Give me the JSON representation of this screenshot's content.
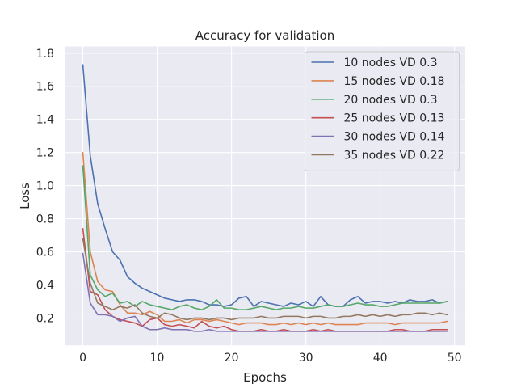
{
  "chart_data": {
    "type": "line",
    "title": "Accuracy for validation",
    "xlabel": "Epochs",
    "ylabel": "Loss",
    "xlim": [
      -2.45,
      51.45
    ],
    "ylim": [
      0.035,
      1.84
    ],
    "xticks": [
      0,
      10,
      20,
      30,
      40,
      50
    ],
    "yticks": [
      0.2,
      0.4,
      0.6,
      0.8,
      1.0,
      1.2,
      1.4,
      1.6,
      1.8
    ],
    "grid": true,
    "legend_position": "top-right",
    "x": [
      0,
      1,
      2,
      3,
      4,
      5,
      6,
      7,
      8,
      9,
      10,
      11,
      12,
      13,
      14,
      15,
      16,
      17,
      18,
      19,
      20,
      21,
      22,
      23,
      24,
      25,
      26,
      27,
      28,
      29,
      30,
      31,
      32,
      33,
      34,
      35,
      36,
      37,
      38,
      39,
      40,
      41,
      42,
      43,
      44,
      45,
      46,
      47,
      48,
      49
    ],
    "series": [
      {
        "name": "10 nodes VD 0.3",
        "color": "#4c72b0",
        "values": [
          1.73,
          1.18,
          0.89,
          0.74,
          0.6,
          0.55,
          0.45,
          0.41,
          0.38,
          0.36,
          0.34,
          0.32,
          0.31,
          0.3,
          0.31,
          0.31,
          0.3,
          0.28,
          0.28,
          0.27,
          0.28,
          0.32,
          0.33,
          0.27,
          0.3,
          0.29,
          0.28,
          0.27,
          0.29,
          0.28,
          0.3,
          0.27,
          0.33,
          0.28,
          0.27,
          0.27,
          0.31,
          0.33,
          0.29,
          0.3,
          0.3,
          0.29,
          0.3,
          0.29,
          0.31,
          0.3,
          0.3,
          0.31,
          0.29,
          0.3
        ]
      },
      {
        "name": "15 nodes VD 0.18",
        "color": "#dd8452",
        "values": [
          1.2,
          0.6,
          0.42,
          0.37,
          0.36,
          0.28,
          0.23,
          0.23,
          0.22,
          0.24,
          0.22,
          0.18,
          0.18,
          0.19,
          0.17,
          0.19,
          0.19,
          0.18,
          0.19,
          0.18,
          0.17,
          0.16,
          0.17,
          0.17,
          0.17,
          0.16,
          0.16,
          0.17,
          0.16,
          0.17,
          0.16,
          0.17,
          0.16,
          0.17,
          0.16,
          0.16,
          0.16,
          0.16,
          0.17,
          0.17,
          0.17,
          0.17,
          0.16,
          0.17,
          0.17,
          0.17,
          0.17,
          0.17,
          0.17,
          0.18
        ]
      },
      {
        "name": "20 nodes VD 0.3",
        "color": "#55a868",
        "values": [
          1.12,
          0.46,
          0.37,
          0.33,
          0.35,
          0.29,
          0.3,
          0.27,
          0.3,
          0.28,
          0.27,
          0.26,
          0.25,
          0.27,
          0.28,
          0.26,
          0.25,
          0.27,
          0.31,
          0.26,
          0.26,
          0.25,
          0.25,
          0.26,
          0.27,
          0.26,
          0.25,
          0.26,
          0.26,
          0.27,
          0.26,
          0.26,
          0.27,
          0.28,
          0.27,
          0.27,
          0.28,
          0.29,
          0.28,
          0.28,
          0.27,
          0.27,
          0.28,
          0.29,
          0.29,
          0.29,
          0.29,
          0.29,
          0.29,
          0.3
        ]
      },
      {
        "name": "25 nodes VD 0.13",
        "color": "#c44e52",
        "values": [
          0.74,
          0.36,
          0.34,
          0.25,
          0.21,
          0.19,
          0.18,
          0.17,
          0.15,
          0.19,
          0.2,
          0.16,
          0.15,
          0.16,
          0.15,
          0.14,
          0.18,
          0.15,
          0.14,
          0.15,
          0.13,
          0.12,
          0.12,
          0.12,
          0.13,
          0.12,
          0.12,
          0.13,
          0.12,
          0.12,
          0.12,
          0.13,
          0.12,
          0.13,
          0.12,
          0.12,
          0.12,
          0.12,
          0.12,
          0.12,
          0.12,
          0.12,
          0.13,
          0.13,
          0.12,
          0.12,
          0.12,
          0.13,
          0.13,
          0.13
        ]
      },
      {
        "name": "30 nodes VD 0.14",
        "color": "#8172b3",
        "values": [
          0.59,
          0.29,
          0.22,
          0.22,
          0.21,
          0.18,
          0.2,
          0.21,
          0.15,
          0.13,
          0.13,
          0.14,
          0.13,
          0.13,
          0.13,
          0.12,
          0.12,
          0.13,
          0.12,
          0.12,
          0.12,
          0.12,
          0.12,
          0.12,
          0.12,
          0.12,
          0.12,
          0.12,
          0.12,
          0.12,
          0.12,
          0.12,
          0.12,
          0.12,
          0.12,
          0.12,
          0.12,
          0.12,
          0.12,
          0.12,
          0.12,
          0.12,
          0.12,
          0.12,
          0.12,
          0.12,
          0.12,
          0.12,
          0.12,
          0.12
        ]
      },
      {
        "name": "35 nodes VD 0.22",
        "color": "#937860",
        "values": [
          0.68,
          0.41,
          0.29,
          0.27,
          0.25,
          0.27,
          0.26,
          0.28,
          0.23,
          0.21,
          0.2,
          0.23,
          0.22,
          0.2,
          0.19,
          0.2,
          0.2,
          0.19,
          0.2,
          0.2,
          0.19,
          0.2,
          0.2,
          0.2,
          0.21,
          0.2,
          0.2,
          0.21,
          0.21,
          0.21,
          0.2,
          0.21,
          0.21,
          0.2,
          0.2,
          0.21,
          0.21,
          0.22,
          0.21,
          0.22,
          0.21,
          0.22,
          0.21,
          0.22,
          0.22,
          0.23,
          0.23,
          0.22,
          0.23,
          0.22
        ]
      }
    ]
  }
}
